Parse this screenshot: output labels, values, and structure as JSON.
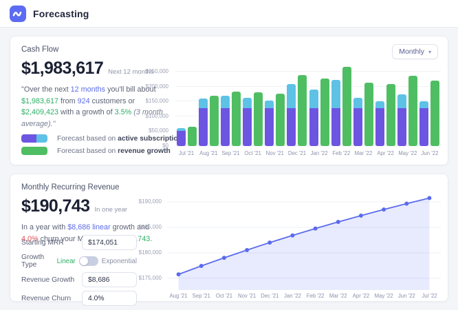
{
  "header": {
    "title": "Forecasting"
  },
  "colors": {
    "logo_blue": "#5B6CF2",
    "bar_purple": "#6C55E0",
    "bar_cyan": "#5EC1E6",
    "bar_green": "#4FBE63",
    "line_indigo": "#5B6BEE",
    "line_fill": "rgba(95,110,240,0.14)"
  },
  "cash_flow": {
    "title": "Cash Flow",
    "amount": "$1,983,617",
    "amount_caption": "Next 12 months",
    "period_selector": {
      "value": "Monthly",
      "icon": "chevron-down"
    },
    "summary_segments": [
      {
        "text": "\"Over the next ",
        "style": "muted"
      },
      {
        "text": "12 months",
        "style": "indigo"
      },
      {
        "text": " you'll bill about ",
        "style": "muted"
      },
      {
        "text": "$1,983,617",
        "style": "green"
      },
      {
        "text": " from ",
        "style": "muted"
      },
      {
        "text": "924",
        "style": "indigo"
      },
      {
        "text": " customers or ",
        "style": "muted"
      },
      {
        "text": "$2,409,423",
        "style": "green"
      },
      {
        "text": " with a growth of ",
        "style": "muted"
      },
      {
        "text": "3.5%",
        "style": "green"
      },
      {
        "text": " ",
        "style": "muted"
      },
      {
        "text": "(3 month average).\"",
        "style": "italic"
      }
    ],
    "legend": [
      {
        "prefix": "Forecast based on ",
        "bold": "active subscriptions",
        "swatch_colors": [
          "#6C55E0",
          "#5EC1E6"
        ]
      },
      {
        "prefix": "Forecast based on ",
        "bold": "revenue growth",
        "swatch_colors": [
          "#4FBE63"
        ]
      }
    ]
  },
  "mrr": {
    "title": "Monthly Recurring Revenue",
    "amount": "$190,743",
    "amount_caption": "In one year",
    "summary_segments": [
      {
        "text": "In a year with ",
        "style": "muted"
      },
      {
        "text": "$8,686 linear",
        "style": "indigo"
      },
      {
        "text": " growth and ",
        "style": "muted"
      },
      {
        "text": "4.0%",
        "style": "red"
      },
      {
        "text": " churn your MRR will be ",
        "style": "muted"
      },
      {
        "text": "$190,743.",
        "style": "green"
      }
    ],
    "form": [
      {
        "label": "Starting MRR",
        "type": "input",
        "value": "$174,051"
      },
      {
        "label": "Growth Type",
        "type": "toggle",
        "options": [
          "Linear",
          "Exponential"
        ],
        "selected": "Linear"
      },
      {
        "label": "Revenue Growth",
        "type": "input",
        "value": "$8,686"
      },
      {
        "label": "Revenue Churn",
        "type": "input",
        "value": "4.0%"
      }
    ]
  },
  "chart_data": [
    {
      "id": "cash-flow-forecast",
      "type": "bar",
      "title": "Cash Flow forecast, monthly",
      "categories": [
        "Jul '21",
        "Aug '21",
        "Sep '21",
        "Oct '21",
        "Nov '21",
        "Dec '21",
        "Jan '22",
        "Feb '22",
        "Mar '22",
        "Apr '22",
        "May '22",
        "Jun '22"
      ],
      "series": [
        {
          "name": "Forecast based on active subscriptions (base)",
          "stack": "subscriptions",
          "color": "#6C55E0",
          "values": [
            51000,
            128000,
            128000,
            128000,
            128000,
            128000,
            128000,
            128000,
            128000,
            128000,
            128000,
            128000
          ]
        },
        {
          "name": "Forecast based on active subscriptions (upside)",
          "stack": "subscriptions",
          "color": "#5EC1E6",
          "values": [
            9000,
            31000,
            42000,
            33000,
            24000,
            80000,
            62000,
            94000,
            33000,
            23000,
            45000,
            23000
          ]
        },
        {
          "name": "Forecast based on revenue growth",
          "color": "#4FBE63",
          "values": [
            64000,
            169000,
            183000,
            181000,
            175000,
            239000,
            226000,
            267000,
            213000,
            208000,
            237000,
            219000
          ]
        }
      ],
      "ylim": [
        0,
        250000
      ],
      "yticks": [
        0,
        50000,
        100000,
        150000,
        200000,
        250000
      ],
      "ytick_labels": [
        "$0",
        "$50,000",
        "$100,000",
        "$150,000",
        "$200,000",
        "$250,000"
      ],
      "grid": true,
      "legend_position": "bottom-left"
    },
    {
      "id": "mrr-forecast",
      "type": "area",
      "title": "Monthly Recurring Revenue forecast",
      "x": [
        "Aug '21",
        "Sep '21",
        "Oct '21",
        "Nov '21",
        "Dec '21",
        "Jan '22",
        "Feb '22",
        "Mar '22",
        "Apr '22",
        "May '22",
        "Jun '22",
        "Jul '22"
      ],
      "values": [
        175775,
        177430,
        179019,
        180544,
        182008,
        183414,
        184763,
        186058,
        187302,
        188496,
        189642,
        190743
      ],
      "ylim": [
        173000,
        192000
      ],
      "yticks": [
        190000,
        185000,
        180000,
        175000
      ],
      "ytick_labels": [
        "$190,000",
        "$185,000",
        "$180,000",
        "$175,000"
      ],
      "grid": true,
      "markers": true
    }
  ]
}
